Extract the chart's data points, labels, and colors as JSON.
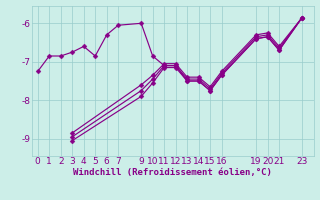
{
  "bg_color": "#cceee8",
  "line_color": "#880088",
  "grid_color": "#99cccc",
  "xlabel": "Windchill (Refroidissement éolien,°C)",
  "ylim": [
    -9.45,
    -5.55
  ],
  "xlim": [
    -0.5,
    24.0
  ],
  "yticks": [
    -9,
    -8,
    -7,
    -6
  ],
  "xticks": [
    0,
    1,
    2,
    3,
    4,
    5,
    6,
    7,
    9,
    10,
    11,
    12,
    13,
    14,
    15,
    16,
    19,
    20,
    21,
    23
  ],
  "line1": {
    "x": [
      0,
      1,
      2,
      3,
      4,
      5,
      6,
      7,
      9,
      10,
      11,
      12,
      13,
      14,
      15,
      16,
      19,
      20,
      21,
      23
    ],
    "y": [
      -7.25,
      -6.85,
      -6.85,
      -6.75,
      -6.6,
      -6.85,
      -6.3,
      -6.05,
      -6.0,
      -6.85,
      -7.1,
      -7.1,
      -7.5,
      -7.5,
      -7.75,
      -7.35,
      -6.4,
      -6.35,
      -6.7,
      -5.85
    ]
  },
  "line2": {
    "x": [
      3,
      9,
      10,
      11,
      12,
      13,
      14,
      15,
      16,
      19,
      20,
      21,
      23
    ],
    "y": [
      -9.05,
      -7.9,
      -7.55,
      -7.15,
      -7.15,
      -7.5,
      -7.5,
      -7.75,
      -7.35,
      -6.4,
      -6.35,
      -6.7,
      -5.85
    ]
  },
  "line3": {
    "x": [
      3,
      9,
      10,
      11,
      12,
      13,
      14,
      15,
      16,
      19,
      20,
      21,
      23
    ],
    "y": [
      -8.95,
      -7.75,
      -7.45,
      -7.1,
      -7.1,
      -7.45,
      -7.45,
      -7.7,
      -7.3,
      -6.35,
      -6.3,
      -6.65,
      -5.85
    ]
  },
  "line4": {
    "x": [
      3,
      9,
      10,
      11,
      12,
      13,
      14,
      15,
      16,
      19,
      20,
      21,
      23
    ],
    "y": [
      -8.85,
      -7.6,
      -7.35,
      -7.05,
      -7.05,
      -7.4,
      -7.4,
      -7.65,
      -7.25,
      -6.3,
      -6.25,
      -6.6,
      -5.85
    ]
  }
}
